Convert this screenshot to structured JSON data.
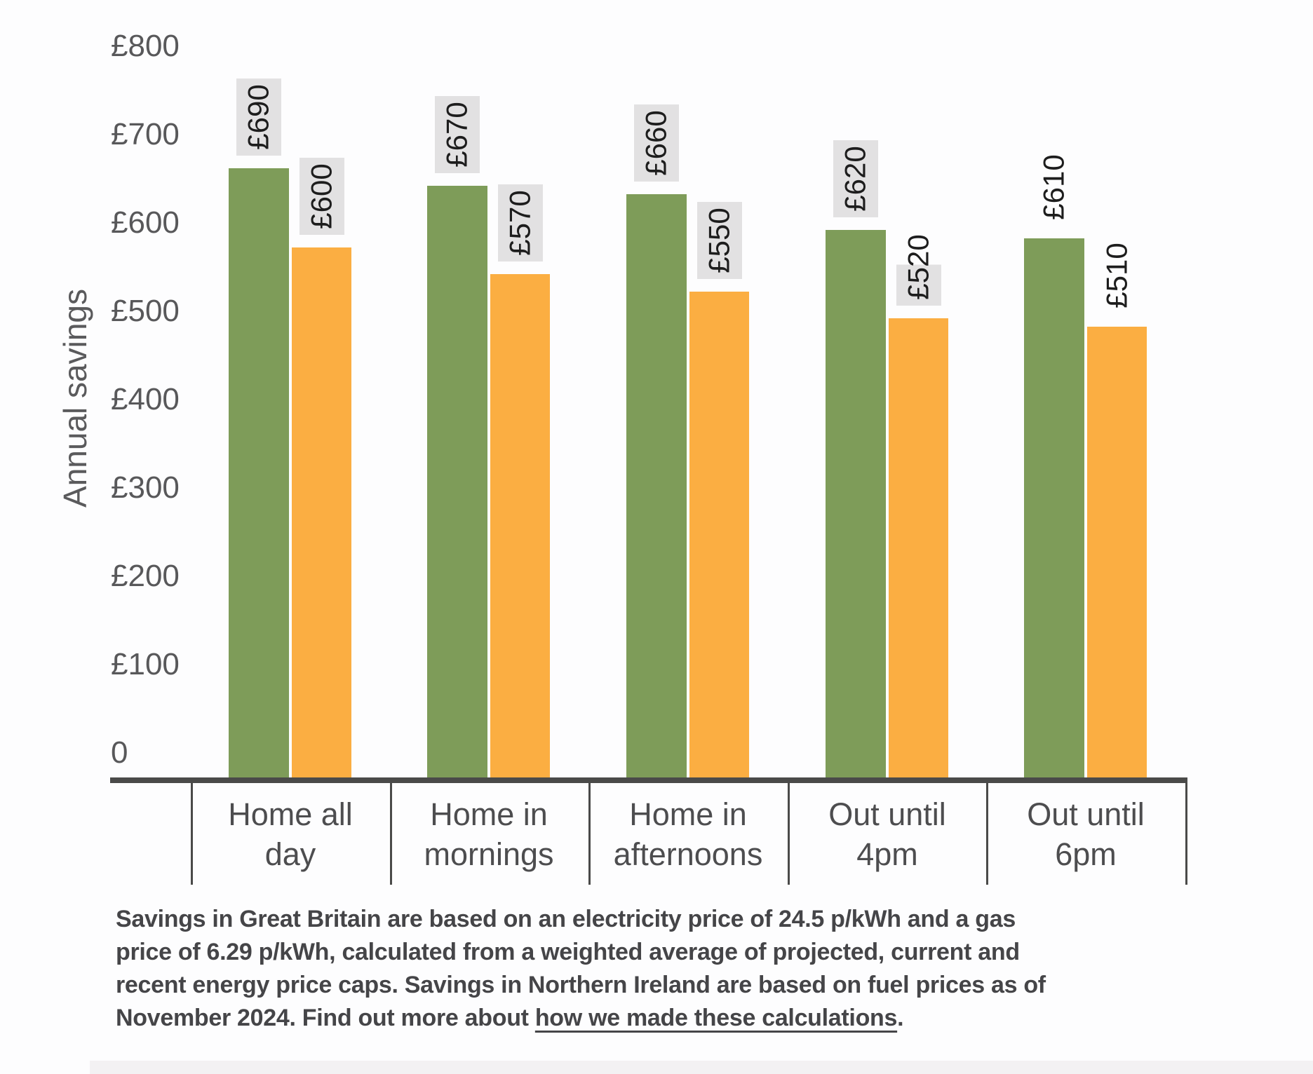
{
  "chart_data": {
    "type": "bar",
    "ylabel": "Annual savings",
    "ylim": [
      0,
      800
    ],
    "ytick_labels": [
      "£800",
      "£700",
      "£600",
      "£500",
      "£400",
      "£300",
      "£200",
      "£100",
      "0"
    ],
    "ytick_values": [
      800,
      700,
      600,
      500,
      400,
      300,
      200,
      100,
      0
    ],
    "grid": false,
    "legend": "none",
    "categories": [
      {
        "line1": "Home all",
        "line2": "day"
      },
      {
        "line1": "Home in",
        "line2": "mornings"
      },
      {
        "line1": "Home in",
        "line2": "afternoons"
      },
      {
        "line1": "Out until",
        "line2": "4pm"
      },
      {
        "line1": "Out until",
        "line2": "6pm"
      }
    ],
    "series": [
      {
        "name": "green",
        "color": "#7e9c59",
        "values": [
          690,
          670,
          660,
          620,
          610
        ],
        "labels": [
          "£690",
          "£670",
          "£660",
          "£620",
          "£610"
        ],
        "label_bg": [
          "full",
          "full",
          "full",
          "full",
          "none"
        ]
      },
      {
        "name": "orange",
        "color": "#fbae42",
        "values": [
          600,
          570,
          550,
          520,
          510
        ],
        "labels": [
          "£600",
          "£570",
          "£550",
          "£520",
          "£510"
        ],
        "label_bg": [
          "full",
          "full",
          "full",
          "partial",
          "none"
        ]
      }
    ],
    "label_bg_color": "#e2e1e2"
  },
  "footnote": {
    "lines": [
      "Savings in Great Britain are based on an electricity price of 24.5 p/kWh and a gas",
      "price of 6.29 p/kWh, calculated from a weighted average of projected, current and",
      "recent energy price caps. Savings in Northern Ireland are based on fuel prices as of"
    ],
    "last_line_prefix": "November 2024. Find out more about ",
    "link_text": "how we made these calculations",
    "last_line_suffix": "."
  },
  "colors": {
    "axis": "#4a4a49",
    "tick_text": "#58585a",
    "category_text": "#4d4d4f",
    "value_label_text": "#1d1d1d",
    "background": "#fdfdfe",
    "bottom_strip": "#f3f1f3"
  }
}
